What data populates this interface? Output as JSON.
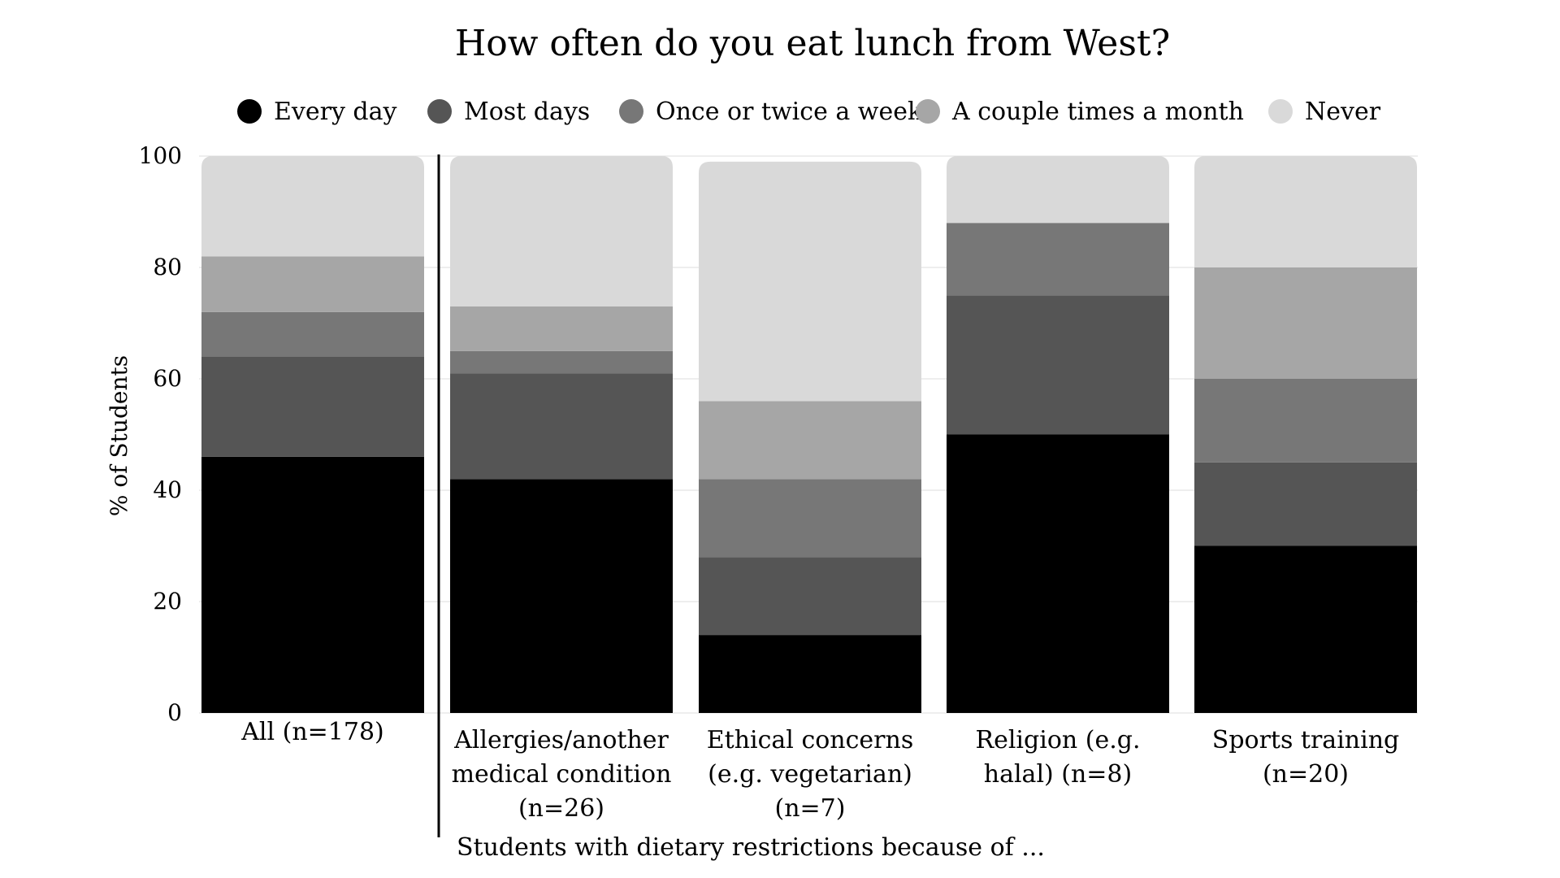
{
  "chart_data": {
    "type": "bar",
    "stacked": true,
    "title": "How often do you eat lunch from West?",
    "ylabel": "% of Students",
    "xlabel": "",
    "ylim": [
      0,
      100
    ],
    "yticks": [
      0,
      20,
      40,
      60,
      80,
      100
    ],
    "grid": true,
    "legend_position": "top",
    "categories": [
      [
        "All (n=178)"
      ],
      [
        "Allergies/another",
        "medical condition",
        "(n=26)"
      ],
      [
        "Ethical concerns",
        "(e.g. vegetarian)",
        "(n=7)"
      ],
      [
        "Religion (e.g.",
        "halal) (n=8)"
      ],
      [
        "Sports training",
        "(n=20)"
      ]
    ],
    "group_label": "Students with dietary restrictions because of ...",
    "series": [
      {
        "name": "Every day",
        "color": "#000000",
        "values": [
          46,
          42,
          14,
          50,
          30
        ]
      },
      {
        "name": "Most days",
        "color": "#555555",
        "values": [
          18,
          19,
          14,
          25,
          15
        ]
      },
      {
        "name": "Once or twice a week",
        "color": "#777777",
        "values": [
          8,
          4,
          14,
          13,
          15
        ]
      },
      {
        "name": "A couple times a month",
        "color": "#a6a6a6",
        "values": [
          10,
          8,
          14,
          0,
          20
        ]
      },
      {
        "name": "Never",
        "color": "#d9d9d9",
        "values": [
          18,
          27,
          43,
          12,
          20
        ]
      }
    ]
  }
}
